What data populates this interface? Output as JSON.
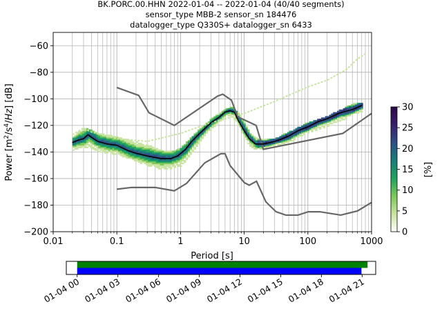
{
  "chart_data": {
    "type": "heatmap",
    "title_lines": [
      "BK.PORC.00.HHN   2022-01-04 -- 2022-01-04  (40/40 segments)",
      "sensor_type MBB-2 sensor_sn 184476",
      "datalogger_type Q330S+ datalogger_sn 6433"
    ],
    "xlabel": "Period [s]",
    "ylabel": "Power [m²/s⁴/Hz] [dB]",
    "x_scale": "log",
    "xlim": [
      0.01,
      1000
    ],
    "ylim": [
      -200,
      -50
    ],
    "x_ticks": [
      {
        "value": 0.01,
        "label": "0.01"
      },
      {
        "value": 0.1,
        "label": "0.1"
      },
      {
        "value": 1,
        "label": "1"
      },
      {
        "value": 10,
        "label": "10"
      },
      {
        "value": 100,
        "label": "100"
      },
      {
        "value": 1000,
        "label": "1000"
      }
    ],
    "y_ticks": [
      -60,
      -80,
      -100,
      -120,
      -140,
      -160,
      -180,
      -200
    ],
    "grid": true,
    "colorbar": {
      "label": "[%]",
      "ticks": [
        0,
        5,
        10,
        15,
        20,
        25,
        30
      ],
      "range": [
        0,
        30
      ],
      "colors": [
        "#ffffff",
        "#c9e3a0",
        "#7cc95a",
        "#1fa35e",
        "#1b7c7a",
        "#2f4f86",
        "#3a1f6b",
        "#2a0a45"
      ]
    },
    "mean_curve": {
      "color": "#000000",
      "points": [
        [
          0.02,
          -133
        ],
        [
          0.025,
          -131
        ],
        [
          0.03,
          -130
        ],
        [
          0.035,
          -127
        ],
        [
          0.04,
          -129
        ],
        [
          0.05,
          -132
        ],
        [
          0.07,
          -134
        ],
        [
          0.1,
          -135
        ],
        [
          0.15,
          -139
        ],
        [
          0.2,
          -141
        ],
        [
          0.3,
          -143
        ],
        [
          0.5,
          -145
        ],
        [
          0.7,
          -145
        ],
        [
          0.9,
          -143
        ],
        [
          1.2,
          -138
        ],
        [
          1.5,
          -132
        ],
        [
          2,
          -126
        ],
        [
          3,
          -118
        ],
        [
          4,
          -114
        ],
        [
          5,
          -110
        ],
        [
          6,
          -109
        ],
        [
          7,
          -110
        ],
        [
          8,
          -116
        ],
        [
          10,
          -124
        ],
        [
          12,
          -130
        ],
        [
          15,
          -134
        ],
        [
          20,
          -134
        ],
        [
          25,
          -133
        ],
        [
          30,
          -132
        ],
        [
          40,
          -130
        ],
        [
          50,
          -128
        ],
        [
          70,
          -124
        ],
        [
          100,
          -121
        ],
        [
          150,
          -117
        ],
        [
          200,
          -115
        ],
        [
          300,
          -111
        ],
        [
          500,
          -108
        ],
        [
          700,
          -105
        ]
      ]
    },
    "noise_models": [
      {
        "name": "high",
        "color": "#666666",
        "points": [
          [
            0.1,
            -91.5
          ],
          [
            0.22,
            -97.4
          ],
          [
            0.32,
            -110.5
          ],
          [
            0.8,
            -120
          ],
          [
            3.8,
            -98
          ],
          [
            4.6,
            -96.5
          ],
          [
            6.3,
            -101
          ],
          [
            7.9,
            -113.5
          ],
          [
            15.4,
            -120
          ],
          [
            20,
            -138
          ],
          [
            354,
            -126
          ],
          [
            1000,
            -111
          ]
        ]
      },
      {
        "name": "low",
        "color": "#666666",
        "points": [
          [
            0.1,
            -168
          ],
          [
            0.17,
            -166.7
          ],
          [
            0.4,
            -166.7
          ],
          [
            0.8,
            -169.2
          ],
          [
            1.24,
            -163.7
          ],
          [
            2.4,
            -148.2
          ],
          [
            4.3,
            -141.3
          ],
          [
            5,
            -141.3
          ],
          [
            6,
            -150.2
          ],
          [
            10,
            -163
          ],
          [
            12,
            -165
          ],
          [
            15.6,
            -162
          ],
          [
            21.9,
            -177.5
          ],
          [
            31.6,
            -185
          ],
          [
            45,
            -187.5
          ],
          [
            70,
            -187.5
          ],
          [
            101,
            -185
          ],
          [
            154,
            -185
          ],
          [
            328,
            -187.5
          ],
          [
            600,
            -184.4
          ],
          [
            1000,
            -178
          ]
        ]
      }
    ],
    "band": [
      [
        0.02,
        -128,
        -139
      ],
      [
        0.03,
        -122,
        -137
      ],
      [
        0.05,
        -126,
        -140
      ],
      [
        0.1,
        -129,
        -143
      ],
      [
        0.2,
        -133,
        -148
      ],
      [
        0.3,
        -135,
        -151
      ],
      [
        0.5,
        -139,
        -154
      ],
      [
        0.7,
        -140,
        -153
      ],
      [
        1,
        -137,
        -151
      ],
      [
        1.5,
        -128,
        -141
      ],
      [
        2,
        -122,
        -132
      ],
      [
        3,
        -115,
        -123
      ],
      [
        5,
        -108,
        -114
      ],
      [
        6,
        -106,
        -113
      ],
      [
        8,
        -111,
        -121
      ],
      [
        10,
        -118,
        -131
      ],
      [
        12,
        -126,
        -136
      ],
      [
        15,
        -130,
        -139
      ],
      [
        20,
        -131,
        -138
      ],
      [
        30,
        -130,
        -136
      ],
      [
        50,
        -125,
        -133
      ],
      [
        100,
        -118,
        -126
      ],
      [
        200,
        -113,
        -121
      ],
      [
        300,
        -109,
        -118
      ],
      [
        500,
        -104,
        -112
      ],
      [
        700,
        -103,
        -110
      ]
    ],
    "faint_line": [
      [
        0.02,
        -127
      ],
      [
        0.03,
        -122
      ],
      [
        0.04,
        -125
      ],
      [
        0.1,
        -130
      ],
      [
        0.3,
        -132
      ],
      [
        1,
        -126
      ],
      [
        3,
        -118
      ],
      [
        10,
        -111
      ],
      [
        30,
        -102
      ],
      [
        100,
        -91
      ],
      [
        200,
        -86
      ],
      [
        400,
        -78
      ],
      [
        600,
        -70
      ],
      [
        800,
        -66
      ]
    ],
    "coverage": {
      "time_ticks": [
        "01-04 00",
        "01-04 03",
        "01-04 06",
        "01-04 09",
        "01-04 12",
        "01-04 15",
        "01-04 18",
        "01-04 21"
      ],
      "xlim_hours": [
        -0.8,
        22
      ],
      "bars": [
        {
          "color": "#008000",
          "start": 0.0,
          "end": 21.4
        },
        {
          "color": "#0000ff",
          "start": 0.0,
          "end": 20.95
        }
      ]
    }
  }
}
